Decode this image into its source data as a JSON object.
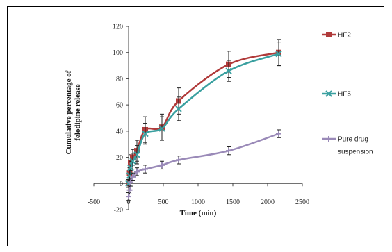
{
  "chart_data": {
    "type": "line",
    "title": "",
    "xlabel": "Time (min)",
    "ylabel_lines": [
      "Cumulative percentage of",
      "felodipine release"
    ],
    "xlim": [
      -500,
      2500
    ],
    "ylim": [
      -20,
      120
    ],
    "xticks": [
      -500,
      0,
      500,
      1000,
      1500,
      2000,
      2500
    ],
    "yticks": [
      -20,
      0,
      20,
      40,
      60,
      80,
      100,
      120
    ],
    "grid": false,
    "legend_position": "right",
    "series": [
      {
        "name": "HF2",
        "color": "#b03a3a",
        "marker": "square",
        "x": [
          0,
          15,
          30,
          60,
          120,
          240,
          480,
          720,
          1440,
          2160
        ],
        "y": [
          0,
          8,
          16,
          20,
          25,
          41,
          43,
          63,
          91,
          100
        ],
        "err": [
          3,
          4,
          6,
          6,
          8,
          10,
          10,
          10,
          10,
          10
        ]
      },
      {
        "name": "HF5",
        "color": "#3aa0a0",
        "marker": "x",
        "x": [
          0,
          15,
          30,
          60,
          120,
          240,
          480,
          720,
          1440,
          2160
        ],
        "y": [
          0,
          6,
          12,
          17,
          22,
          38,
          42,
          57,
          86,
          99
        ],
        "err": [
          3,
          4,
          5,
          6,
          7,
          8,
          9,
          9,
          8,
          9
        ]
      },
      {
        "name": "Pure drug\nsuspension",
        "legend_lines": [
          "Pure drug",
          "suspension"
        ],
        "color": "#9a8ab8",
        "marker": "cross",
        "x": [
          0,
          15,
          30,
          60,
          120,
          240,
          480,
          720,
          1440,
          2160
        ],
        "y": [
          -10,
          -5,
          1,
          5,
          9,
          11,
          14,
          18,
          25,
          38
        ],
        "err": [
          3,
          3,
          3,
          3,
          3,
          3,
          3,
          3,
          3,
          3
        ]
      }
    ]
  }
}
